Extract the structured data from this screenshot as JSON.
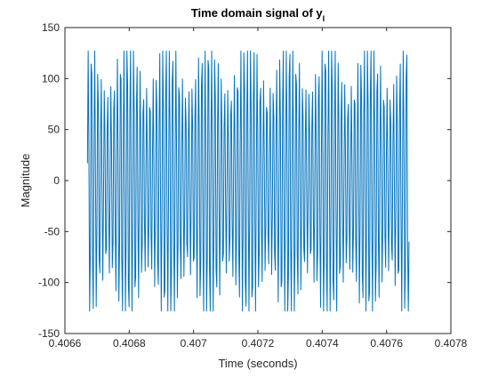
{
  "chart_data": {
    "type": "line",
    "title_main": "Time domain signal of y",
    "title_subscript": "l",
    "xlabel": "Time (seconds)",
    "ylabel": "Magnitude",
    "xlim": [
      0.4066,
      0.4078
    ],
    "ylim": [
      -150,
      150
    ],
    "x_ticks": [
      0.4066,
      0.4068,
      0.407,
      0.4072,
      0.4074,
      0.4076,
      0.4078
    ],
    "x_tick_labels": [
      "0.4066",
      "0.4068",
      "0.407",
      "0.4072",
      "0.4074",
      "0.4076",
      "0.4078"
    ],
    "y_ticks": [
      -150,
      -100,
      -50,
      0,
      50,
      100,
      150
    ],
    "y_tick_labels": [
      "-150",
      "-100",
      "-50",
      "0",
      "50",
      "100",
      "150"
    ],
    "grid": false,
    "series": [
      {
        "color": "#0072BD",
        "x_start": 0.40667,
        "x_end": 0.40767,
        "sample_count": 440,
        "cycles": 99,
        "envelope_cycles": 8,
        "amplitude_min": 90,
        "amplitude_max": 150,
        "clip_high": 127,
        "clip_low": -128,
        "start_value": 17,
        "end_value": -60
      }
    ]
  }
}
